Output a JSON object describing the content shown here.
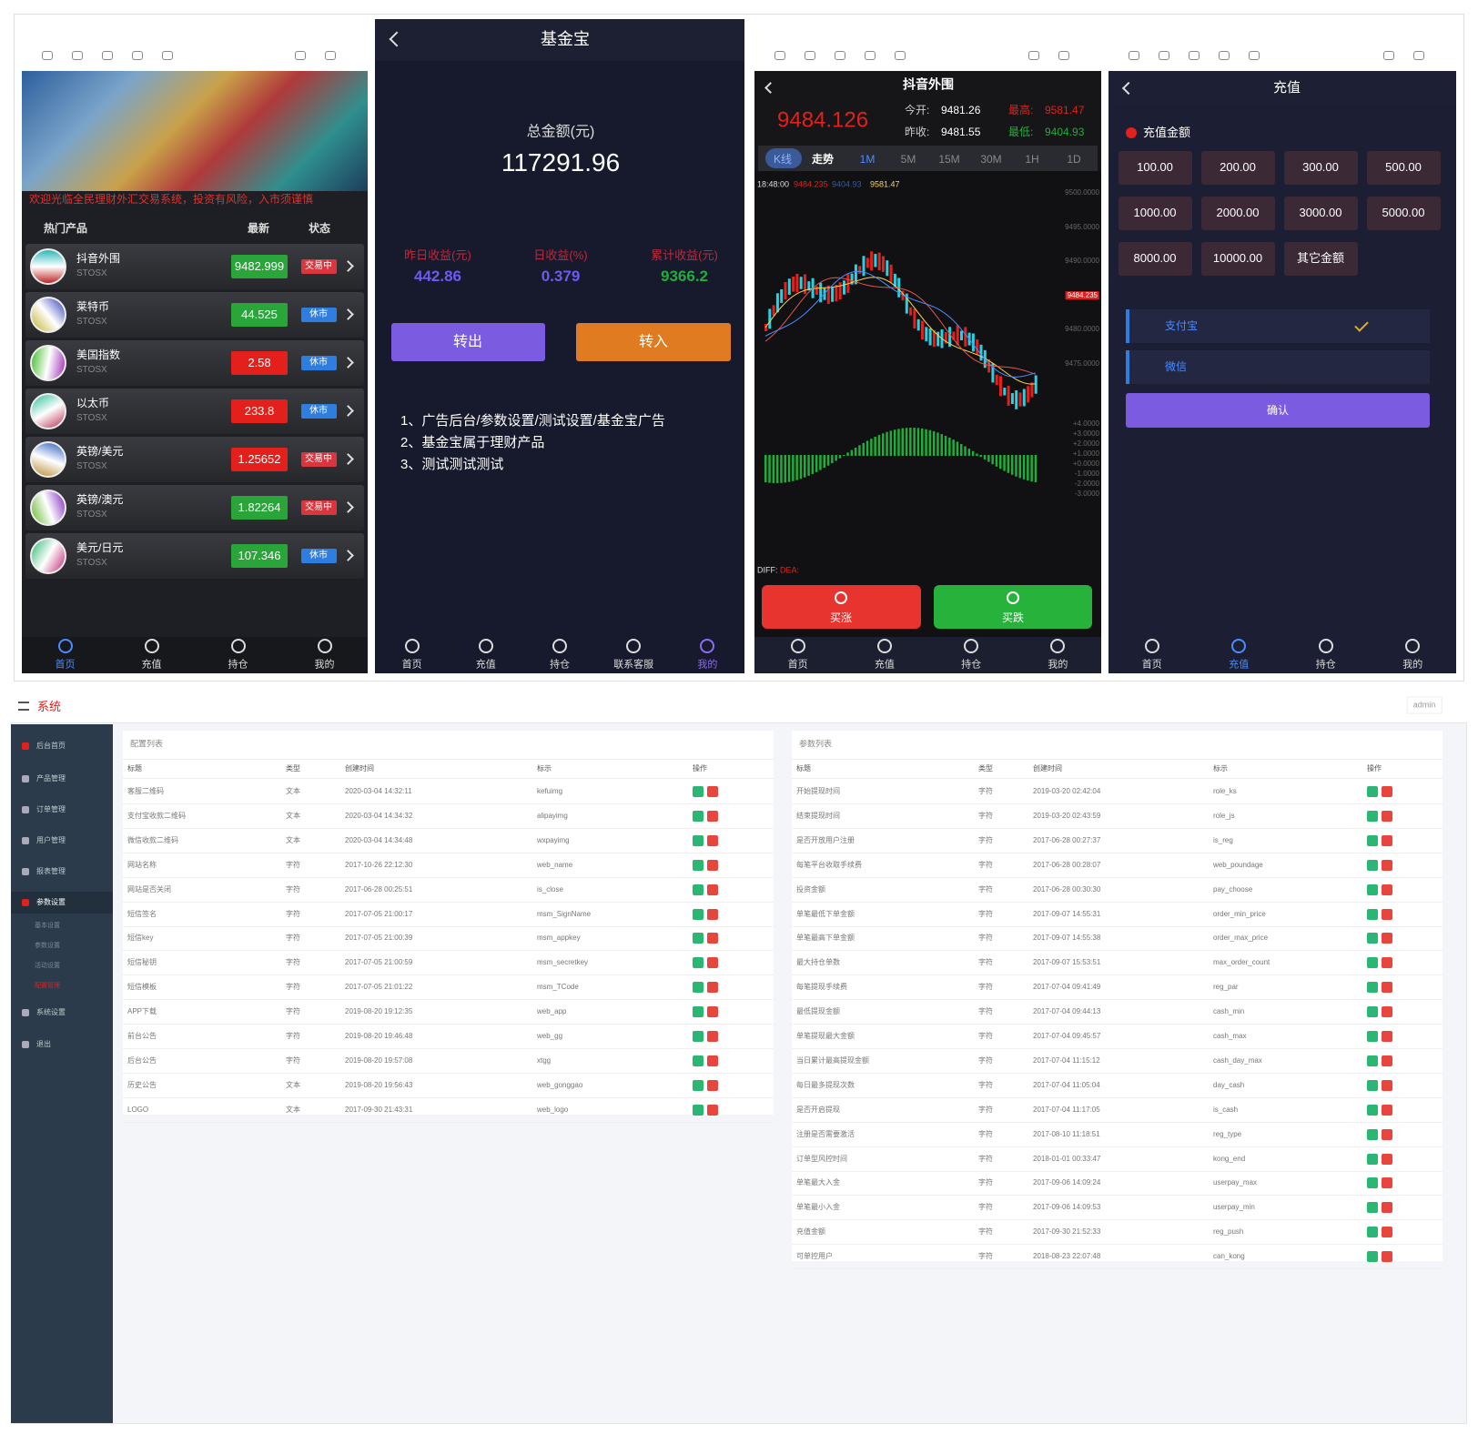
{
  "market": {
    "notice": "欢迎光临全民理财外汇交易系统，投资有风险，入市须谨慎",
    "columns": [
      "热门产品",
      "最新",
      "状态"
    ],
    "products": [
      {
        "name": "抖音外围",
        "code": "STOSX",
        "price": "9482.999",
        "color": "#2aa53a",
        "status": "交易中",
        "status_color": "#d9363e"
      },
      {
        "name": "莱特币",
        "code": "STOSX",
        "price": "44.525",
        "color": "#2aa53a",
        "status": "休市",
        "status_color": "#2d7ee0"
      },
      {
        "name": "美国指数",
        "code": "STOSX",
        "price": "2.58",
        "color": "#e3201b",
        "status": "休市",
        "status_color": "#2d7ee0"
      },
      {
        "name": "以太币",
        "code": "STOSX",
        "price": "233.8",
        "color": "#e3201b",
        "status": "休市",
        "status_color": "#2d7ee0"
      },
      {
        "name": "英镑/美元",
        "code": "STOSX",
        "price": "1.25652",
        "color": "#e3201b",
        "status": "交易中",
        "status_color": "#d9363e"
      },
      {
        "name": "英镑/澳元",
        "code": "STOSX",
        "price": "1.82264",
        "color": "#2aa53a",
        "status": "交易中",
        "status_color": "#d9363e"
      },
      {
        "name": "美元/日元",
        "code": "STOSX",
        "price": "107.346",
        "color": "#2aa53a",
        "status": "休市",
        "status_color": "#2d7ee0"
      }
    ],
    "nav": [
      "首页",
      "充值",
      "持仓",
      "我的"
    ]
  },
  "fund": {
    "title": "基金宝",
    "total_label": "总金额(元)",
    "total": "117291.96",
    "stats": [
      {
        "label": "昨日收益(元)",
        "value": "442.86",
        "color": "#6a5cf0"
      },
      {
        "label": "日收益(%)",
        "value": "0.379",
        "color": "#6a5cf0"
      },
      {
        "label": "累计收益(元)",
        "value": "9366.2",
        "color": "#1fae3a"
      }
    ],
    "buttons": [
      "转出",
      "转入"
    ],
    "notes": [
      "1、广告后台/参数设置/测试设置/基金宝广告",
      "2、基金宝属于理财产品",
      "3、测试测试测试"
    ],
    "nav": [
      "首页",
      "充值",
      "持仓",
      "联系客服",
      "我的"
    ]
  },
  "quote": {
    "title": "抖音外围",
    "price": "9484.126",
    "open_label": "今开:",
    "open": "9481.26",
    "close_label": "昨收:",
    "close": "9481.55",
    "high_label": "最高:",
    "high": "9581.47",
    "low_label": "最低:",
    "low": "9404.93",
    "tabs": [
      "K线",
      "走势",
      "1M",
      "5M",
      "15M",
      "30M",
      "1H",
      "1D"
    ],
    "chart_time": "18:48:00",
    "chart_vals": [
      "9484.235",
      "9404.93",
      "9581.47"
    ],
    "price_axis": [
      "9500.0000",
      "9495.0000",
      "9490.0000",
      "9484.235",
      "9480.0000",
      "9475.0000"
    ],
    "macd_axis": [
      "+4.0000",
      "+3.0000",
      "+2.0000",
      "+1.0000",
      "+0.0000",
      "-1.0000",
      "-2.0000",
      "-3.0000"
    ],
    "diff_label": "DIFF:",
    "dea_label": "DEA:",
    "buttons": [
      "买涨",
      "买跌"
    ],
    "nav": [
      "首页",
      "充值",
      "持仓",
      "我的"
    ]
  },
  "recharge": {
    "title": "充值",
    "amount_label": "充值金额",
    "amounts": [
      "100.00",
      "200.00",
      "300.00",
      "500.00",
      "1000.00",
      "2000.00",
      "3000.00",
      "5000.00",
      "8000.00",
      "10000.00",
      "其它金额"
    ],
    "methods": [
      "支付宝",
      "微信"
    ],
    "confirm": "确认",
    "nav": [
      "首页",
      "充值",
      "持仓",
      "我的"
    ]
  },
  "admin": {
    "title": "系统",
    "user": "admin",
    "menu": [
      "后台首页",
      "产品管理",
      "订单管理",
      "用户管理",
      "报表管理",
      "参数设置",
      "系统设置",
      "退出"
    ],
    "submenu": [
      "基本设置",
      "参数设置",
      "活动设置",
      "配置管理"
    ],
    "config": {
      "title": "配置列表",
      "columns": [
        "标题",
        "类型",
        "创建时间",
        "标示",
        "操作"
      ],
      "rows": [
        [
          "客服二维码",
          "文本",
          "2020-03-04 14:32:11",
          "kefuimg"
        ],
        [
          "支付宝收款二维码",
          "文本",
          "2020-03-04 14:34:32",
          "alipayimg"
        ],
        [
          "微信收款二维码",
          "文本",
          "2020-03-04 14:34:48",
          "wxpayimg"
        ],
        [
          "网站名称",
          "字符",
          "2017-10-26 22:12:30",
          "web_name"
        ],
        [
          "网站是否关闭",
          "字符",
          "2017-06-28 00:25:51",
          "is_close"
        ],
        [
          "短信签名",
          "字符",
          "2017-07-05 21:00:17",
          "msm_SignName"
        ],
        [
          "短信key",
          "字符",
          "2017-07-05 21:00:39",
          "msm_appkey"
        ],
        [
          "短信秘钥",
          "字符",
          "2017-07-05 21:00:59",
          "msm_secretkey"
        ],
        [
          "短信模板",
          "字符",
          "2017-07-05 21:01:22",
          "msm_TCode"
        ],
        [
          "APP下载",
          "字符",
          "2019-08-20 19:12:35",
          "web_app"
        ],
        [
          "前台公告",
          "字符",
          "2019-08-20 19:46:48",
          "web_gg"
        ],
        [
          "后台公告",
          "字符",
          "2019-08-20 19:57:08",
          "xtgg"
        ],
        [
          "历史公告",
          "文本",
          "2019-08-20 19:56:43",
          "web_gonggao"
        ],
        [
          "LOGO",
          "文本",
          "2017-09-30 21:43:31",
          "web_logo"
        ]
      ]
    },
    "params": {
      "title": "参数列表",
      "columns": [
        "标题",
        "类型",
        "创建时间",
        "标示",
        "操作"
      ],
      "rows": [
        [
          "开始提现时间",
          "字符",
          "2019-03-20 02:42:04",
          "role_ks"
        ],
        [
          "结束提现时间",
          "字符",
          "2019-03-20 02:43:59",
          "role_js"
        ],
        [
          "是否开放用户注册",
          "字符",
          "2017-06-28 00:27:37",
          "is_reg"
        ],
        [
          "每笔平台收取手续费",
          "字符",
          "2017-06-28 00:28:07",
          "web_poundage"
        ],
        [
          "投资金额",
          "字符",
          "2017-06-28 00:30:30",
          "pay_choose"
        ],
        [
          "单笔最低下单金额",
          "字符",
          "2017-09-07 14:55:31",
          "order_min_price"
        ],
        [
          "单笔最高下单金额",
          "字符",
          "2017-09-07 14:55:38",
          "order_max_price"
        ],
        [
          "最大持仓单数",
          "字符",
          "2017-09-07 15:53:51",
          "max_order_count"
        ],
        [
          "每笔提现手续费",
          "字符",
          "2017-07-04 09:41:49",
          "reg_par"
        ],
        [
          "最低提现金额",
          "字符",
          "2017-07-04 09:44:13",
          "cash_min"
        ],
        [
          "单笔提现最大金额",
          "字符",
          "2017-07-04 09:45:57",
          "cash_max"
        ],
        [
          "当日累计最高提现金额",
          "字符",
          "2017-07-04 11:15:12",
          "cash_day_max"
        ],
        [
          "每日最多提现次数",
          "字符",
          "2017-07-04 11:05:04",
          "day_cash"
        ],
        [
          "是否开启提现",
          "字符",
          "2017-07-04 11:17:05",
          "is_cash"
        ],
        [
          "注册是否需要激活",
          "字符",
          "2017-08-10 11:18:51",
          "reg_type"
        ],
        [
          "订单型风控时间",
          "字符",
          "2018-01-01 00:33:47",
          "kong_end"
        ],
        [
          "单笔最大入金",
          "字符",
          "2017-09-06 14:09:24",
          "userpay_max"
        ],
        [
          "单笔最小入金",
          "字符",
          "2017-09-06 14:09:53",
          "userpay_min"
        ],
        [
          "充值金额",
          "字符",
          "2017-09-30 21:52:33",
          "reg_push"
        ],
        [
          "可单控用户",
          "字符",
          "2018-08-23 22:07:48",
          "can_kong"
        ]
      ]
    }
  }
}
